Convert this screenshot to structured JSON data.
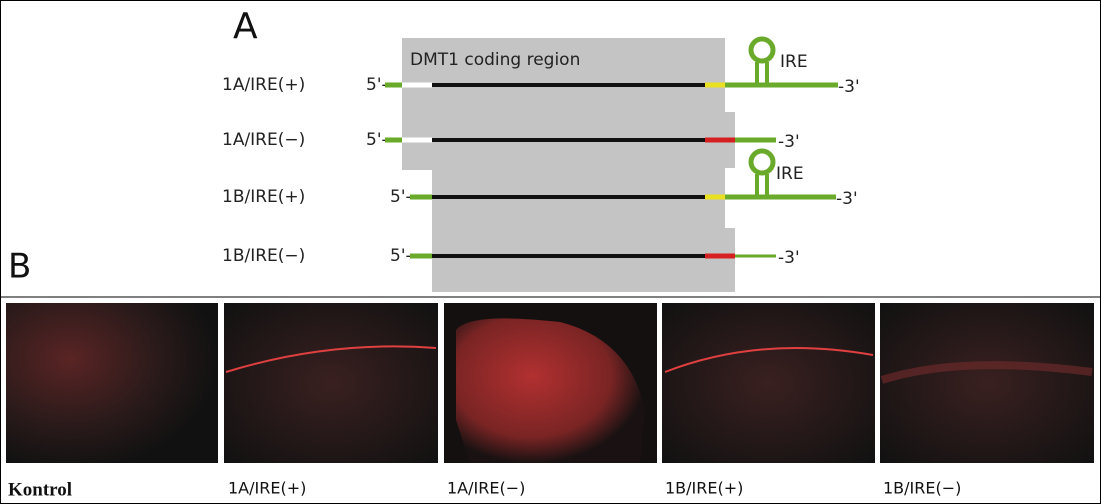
{
  "panel_a": {
    "label": "A",
    "coding_region_label": "DMT1 coding region",
    "constructs": [
      {
        "name": "1A/IRE(+)",
        "five_prime": "5'-",
        "three_prime": "-3'",
        "ire": "IRE"
      },
      {
        "name": "1A/IRE(−)",
        "five_prime": "5'-",
        "three_prime": "-3'"
      },
      {
        "name": "1B/IRE(+)",
        "five_prime": "5'-",
        "three_prime": "-3'",
        "ire": "IRE"
      },
      {
        "name": "1B/IRE(−)",
        "five_prime": "5'-",
        "three_prime": "-3'"
      }
    ]
  },
  "panel_b": {
    "label": "B",
    "captions": [
      "Kontrol",
      "1A/IRE(+)",
      "1A/IRE(−)",
      "1B/IRE(+)",
      "1B/IRE(−)"
    ]
  }
}
